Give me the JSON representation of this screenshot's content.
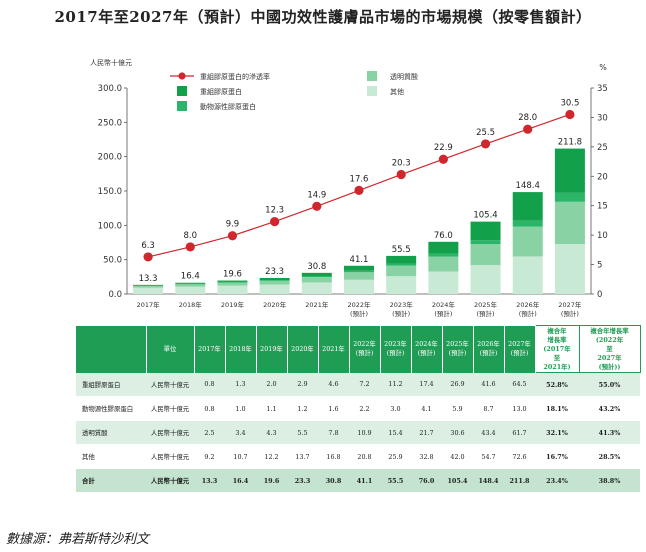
{
  "title": "2017年至2027年（預計）中國功效性護膚品市場的市場規模（按零售額計）",
  "source": "數據源：弗若斯特沙利文",
  "colors": {
    "recombinant": "#13a04a",
    "animal": "#2bb569",
    "hyaluronic": "#88d2a3",
    "other": "#c8ead4",
    "line": "#d0272e",
    "header": "#1f9d55"
  },
  "chart_data": {
    "type": "bar",
    "stacked": true,
    "categories": [
      "2017年",
      "2018年",
      "2019年",
      "2020年",
      "2021年",
      "2022年\n(預計)",
      "2023年\n(預計)",
      "2024年\n(預計)",
      "2025年\n(預計)",
      "2026年\n(預計)",
      "2027年\n(預計)"
    ],
    "ylabel_left": "人民幣十億元",
    "ylabel_right": "%",
    "ylim_left": [
      0,
      300
    ],
    "yticks_left": [
      "0.0",
      "50.0",
      "100.0",
      "150.0",
      "200.0",
      "250.0",
      "300.0"
    ],
    "ylim_right": [
      0,
      35
    ],
    "yticks_right": [
      "0",
      "5",
      "10",
      "15",
      "20",
      "25",
      "30",
      "35"
    ],
    "series": [
      {
        "name": "其他",
        "key": "other",
        "values": [
          9.2,
          10.7,
          12.2,
          13.7,
          16.8,
          20.8,
          25.9,
          32.8,
          42.0,
          54.7,
          72.6
        ]
      },
      {
        "name": "透明質酸",
        "key": "hyaluronic",
        "values": [
          2.5,
          3.4,
          4.3,
          5.5,
          7.8,
          10.9,
          15.4,
          21.7,
          30.6,
          43.4,
          61.7
        ]
      },
      {
        "name": "動物源性膠原蛋白",
        "key": "animal",
        "values": [
          0.8,
          1.0,
          1.1,
          1.2,
          1.6,
          2.2,
          3.0,
          4.1,
          5.9,
          8.7,
          13.0
        ]
      },
      {
        "name": "重組膠原蛋白",
        "key": "recombinant",
        "values": [
          0.8,
          1.3,
          2.0,
          2.9,
          4.6,
          7.2,
          11.2,
          17.4,
          26.9,
          41.6,
          64.5
        ]
      }
    ],
    "totals": [
      "13.3",
      "16.4",
      "19.6",
      "23.3",
      "30.8",
      "41.1",
      "55.5",
      "76.0",
      "105.4",
      "148.4",
      "211.8"
    ],
    "totals_values": [
      13.3,
      16.4,
      19.6,
      23.3,
      30.8,
      41.1,
      55.5,
      76.0,
      105.4,
      148.4,
      211.8
    ],
    "line": {
      "name": "重組膠原蛋白的滲透率",
      "axis": "right",
      "values": [
        6.3,
        8.0,
        9.9,
        12.3,
        14.9,
        17.6,
        20.3,
        22.9,
        25.5,
        28.0,
        30.5
      ],
      "labels": [
        "6.3",
        "8.0",
        "9.9",
        "12.3",
        "14.9",
        "17.6",
        "20.3",
        "22.9",
        "25.5",
        "28.0",
        "30.5"
      ]
    },
    "legend": [
      {
        "key": "line",
        "label": "重組膠原蛋白的滲透率"
      },
      {
        "key": "recombinant",
        "label": "重組膠原蛋白"
      },
      {
        "key": "animal",
        "label": "動物源性膠原蛋白"
      },
      {
        "key": "hyaluronic",
        "label": "透明質酸"
      },
      {
        "key": "other",
        "label": "其他"
      }
    ]
  },
  "table": {
    "unit_header": "單位",
    "year_headers": [
      "2017年",
      "2018年",
      "2019年",
      "2020年",
      "2021年",
      "2022年\n(預計)",
      "2023年\n(預計)",
      "2024年\n(預計)",
      "2025年\n(預計)",
      "2026年\n(預計)",
      "2027年\n(預計)"
    ],
    "cagr_headers": [
      "複合年\n增長率\n(2017年\n至\n2021年)",
      "複合年增長率\n(2022年\n至\n2027年\n(預計))"
    ],
    "rows": [
      {
        "label": "重組膠原蛋白",
        "unit": "人民幣十億元",
        "values": [
          "0.8",
          "1.3",
          "2.0",
          "2.9",
          "4.6",
          "7.2",
          "11.2",
          "17.4",
          "26.9",
          "41.6",
          "64.5"
        ],
        "cagr": [
          "52.8%",
          "55.0%"
        ]
      },
      {
        "label": "動物源性膠原蛋白",
        "unit": "人民幣十億元",
        "values": [
          "0.8",
          "1.0",
          "1.1",
          "1.2",
          "1.6",
          "2.2",
          "3.0",
          "4.1",
          "5.9",
          "8.7",
          "13.0"
        ],
        "cagr": [
          "18.1%",
          "43.2%"
        ]
      },
      {
        "label": "透明質酸",
        "unit": "人民幣十億元",
        "values": [
          "2.5",
          "3.4",
          "4.3",
          "5.5",
          "7.8",
          "10.9",
          "15.4",
          "21.7",
          "30.6",
          "43.4",
          "61.7"
        ],
        "cagr": [
          "32.1%",
          "41.3%"
        ]
      },
      {
        "label": "其他",
        "unit": "人民幣十億元",
        "values": [
          "9.2",
          "10.7",
          "12.2",
          "13.7",
          "16.8",
          "20.8",
          "25.9",
          "32.8",
          "42.0",
          "54.7",
          "72.6"
        ],
        "cagr": [
          "16.7%",
          "28.5%"
        ]
      },
      {
        "label": "合計",
        "unit": "人民幣十億元",
        "values": [
          "13.3",
          "16.4",
          "19.6",
          "23.3",
          "30.8",
          "41.1",
          "55.5",
          "76.0",
          "105.4",
          "148.4",
          "211.8"
        ],
        "cagr": [
          "23.4%",
          "38.8%"
        ],
        "total": true
      }
    ]
  }
}
